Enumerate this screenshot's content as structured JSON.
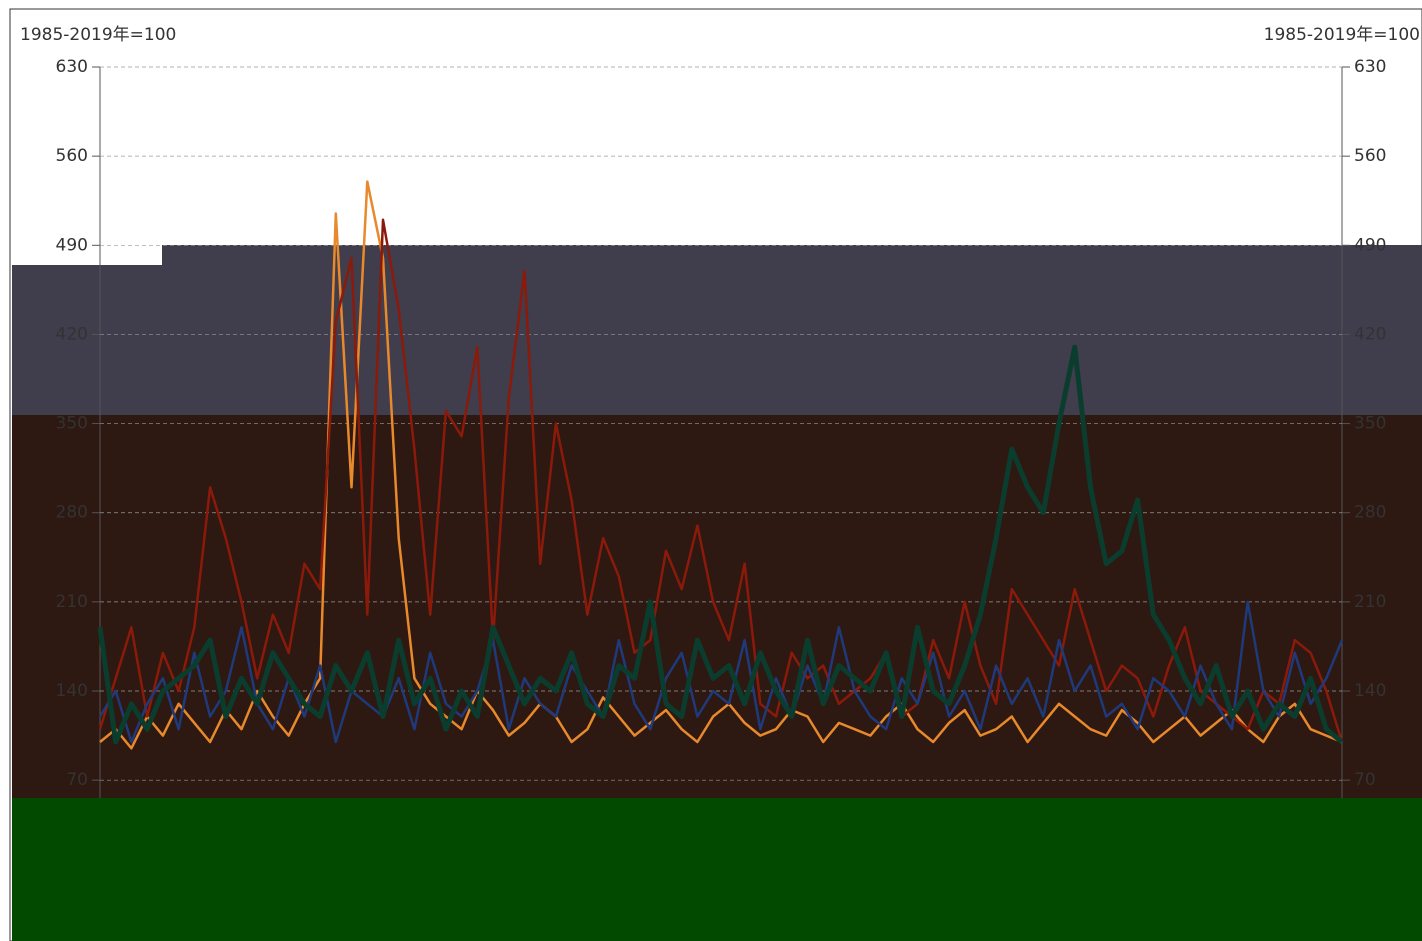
{
  "chart_data": {
    "type": "line",
    "y_label": "1985-2019年=100",
    "y2_label": "1985-2019年=100",
    "ylim": [
      56,
      630
    ],
    "yticks": [
      70,
      140,
      210,
      280,
      350,
      420,
      490,
      560,
      630
    ],
    "y2lim": [
      56,
      630
    ],
    "y2ticks": [
      70,
      140,
      210,
      280,
      350,
      420,
      490,
      560,
      630
    ],
    "grid": true,
    "series": [
      {
        "color": "#e8892b",
        "values": [
          100,
          110,
          95,
          120,
          105,
          130,
          115,
          100,
          125,
          110,
          140,
          120,
          105,
          130,
          150,
          515,
          300,
          540,
          480,
          260,
          150,
          130,
          120,
          110,
          140,
          125,
          105,
          115,
          130,
          120,
          100,
          110,
          135,
          120,
          105,
          115,
          125,
          110,
          100,
          120,
          130,
          115,
          105,
          110,
          125,
          120,
          100,
          115,
          110,
          105,
          120,
          130,
          110,
          100,
          115,
          125,
          105,
          110,
          120,
          100,
          115,
          130,
          120,
          110,
          105,
          125,
          115,
          100,
          110,
          120,
          105,
          115,
          125,
          110,
          100,
          120,
          130,
          110,
          105,
          100
        ]
      },
      {
        "color": "#8b1a0a",
        "values": [
          110,
          150,
          190,
          120,
          170,
          140,
          190,
          300,
          260,
          210,
          150,
          200,
          170,
          240,
          220,
          430,
          480,
          200,
          510,
          440,
          330,
          200,
          360,
          340,
          410,
          180,
          370,
          470,
          240,
          350,
          290,
          200,
          260,
          230,
          170,
          180,
          250,
          220,
          270,
          210,
          180,
          240,
          130,
          120,
          170,
          150,
          160,
          130,
          140,
          150,
          170,
          120,
          130,
          180,
          150,
          210,
          160,
          130,
          220,
          200,
          180,
          160,
          220,
          180,
          140,
          160,
          150,
          120,
          160,
          190,
          140,
          130,
          120,
          110,
          140,
          130,
          180,
          170,
          140,
          100
        ]
      },
      {
        "color": "#1f3a7a",
        "values": [
          120,
          140,
          100,
          130,
          150,
          110,
          170,
          120,
          140,
          190,
          130,
          110,
          150,
          120,
          160,
          100,
          140,
          130,
          120,
          150,
          110,
          170,
          130,
          120,
          140,
          180,
          110,
          150,
          130,
          120,
          160,
          140,
          120,
          180,
          130,
          110,
          150,
          170,
          120,
          140,
          130,
          180,
          110,
          150,
          120,
          160,
          130,
          190,
          140,
          120,
          110,
          150,
          130,
          170,
          120,
          140,
          110,
          160,
          130,
          150,
          120,
          180,
          140,
          160,
          120,
          130,
          110,
          150,
          140,
          120,
          160,
          130,
          110,
          210,
          140,
          120,
          170,
          130,
          150,
          180
        ]
      },
      {
        "color": "#0b3d2e",
        "values": [
          190,
          100,
          130,
          110,
          140,
          150,
          160,
          180,
          120,
          150,
          130,
          170,
          150,
          130,
          120,
          160,
          140,
          170,
          120,
          180,
          130,
          150,
          110,
          140,
          120,
          190,
          160,
          130,
          150,
          140,
          170,
          130,
          120,
          160,
          150,
          210,
          130,
          120,
          180,
          150,
          160,
          130,
          170,
          140,
          120,
          180,
          130,
          160,
          150,
          140,
          170,
          120,
          190,
          140,
          130,
          160,
          200,
          260,
          330,
          300,
          280,
          350,
          410,
          300,
          240,
          250,
          290,
          200,
          180,
          150,
          130,
          160,
          120,
          140,
          110,
          130,
          120,
          150,
          110,
          100
        ]
      }
    ]
  }
}
